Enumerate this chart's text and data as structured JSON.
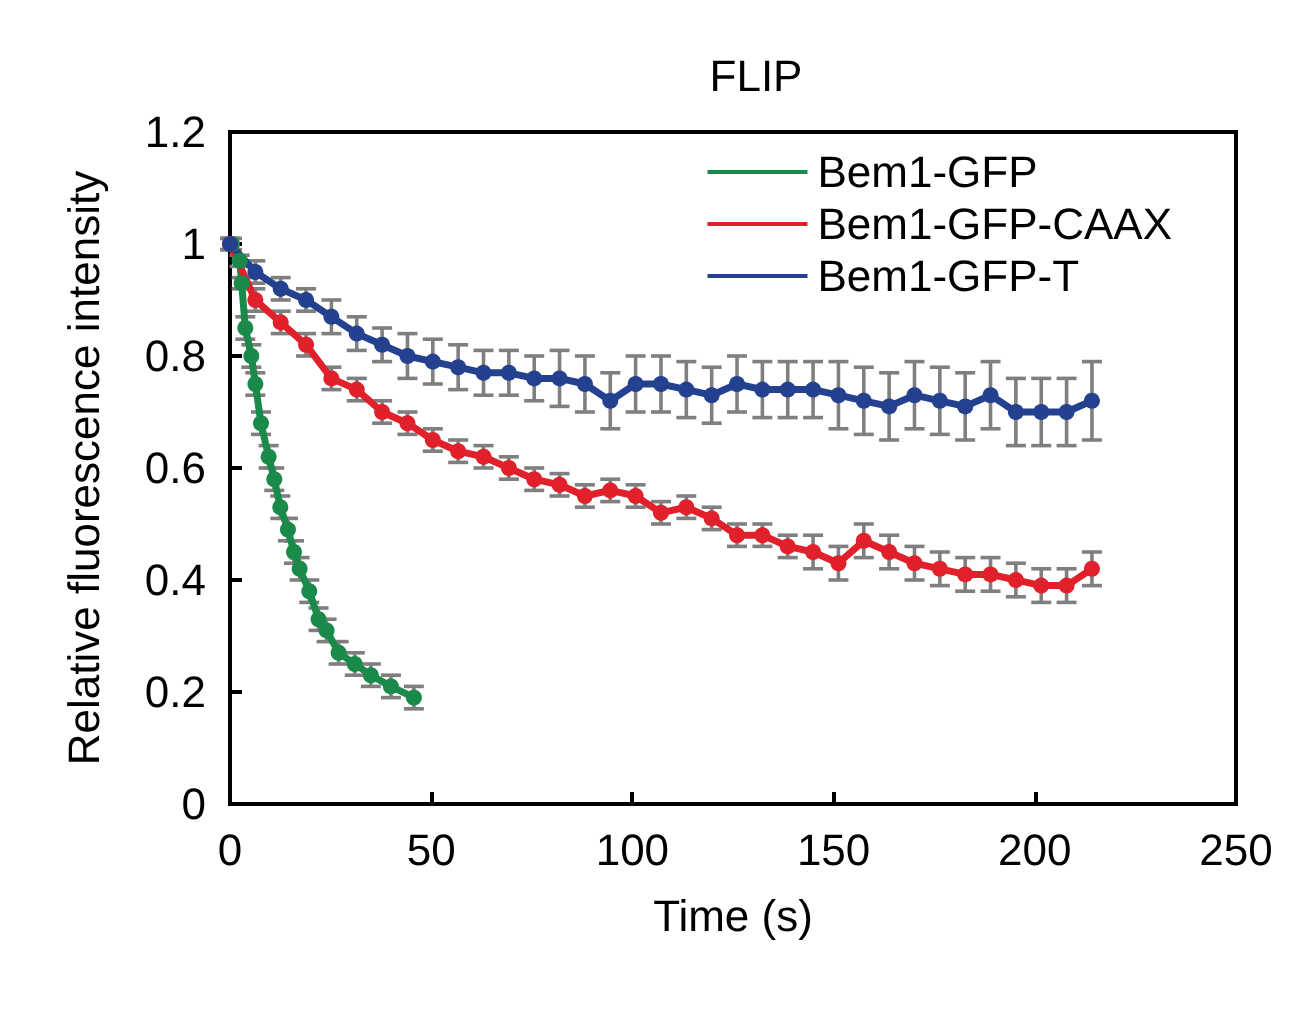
{
  "chart_data": {
    "type": "line",
    "title": "FLIP",
    "xlabel": "Time (s)",
    "ylabel": "Relative fluorescence intensity",
    "x": [
      0,
      6.3,
      12.6,
      18.9,
      25.2,
      31.5,
      37.8,
      44.1,
      50.4,
      56.7,
      63,
      69.3,
      75.6,
      81.9,
      88.2,
      94.5,
      100.8,
      107.1,
      113.4,
      119.7,
      126,
      132.3,
      138.6,
      144.9,
      151.2,
      157.5,
      163.8,
      170.1,
      176.4,
      182.7,
      189,
      195.3,
      201.6,
      207.9,
      214.2
    ],
    "series": [
      {
        "name": "Bem1-GFP",
        "color": "#1a8a4a",
        "x": [
          0.5,
          2.4,
          2.9,
          3.8,
          5.3,
          6.3,
          7.7,
          9.6,
          11,
          12.5,
          14.4,
          15.9,
          17.3,
          19.7,
          22,
          24,
          27,
          31,
          35,
          40,
          45.7
        ],
        "values": [
          1.0,
          0.97,
          0.93,
          0.85,
          0.8,
          0.75,
          0.68,
          0.62,
          0.58,
          0.53,
          0.49,
          0.45,
          0.42,
          0.38,
          0.33,
          0.31,
          0.27,
          0.25,
          0.23,
          0.21,
          0.19
        ],
        "errors": [
          0.01,
          0.01,
          0.01,
          0.02,
          0.02,
          0.02,
          0.02,
          0.02,
          0.02,
          0.02,
          0.02,
          0.02,
          0.02,
          0.02,
          0.02,
          0.02,
          0.02,
          0.02,
          0.02,
          0.02,
          0.02
        ]
      },
      {
        "name": "Bem1-GFP-CAAX",
        "color": "#e0202a",
        "values": [
          1.0,
          0.9,
          0.86,
          0.82,
          0.76,
          0.74,
          0.7,
          0.68,
          0.65,
          0.63,
          0.62,
          0.6,
          0.58,
          0.57,
          0.55,
          0.56,
          0.55,
          0.52,
          0.53,
          0.51,
          0.48,
          0.48,
          0.46,
          0.45,
          0.43,
          0.47,
          0.45,
          0.43,
          0.42,
          0.41,
          0.41,
          0.4,
          0.39,
          0.39,
          0.42
        ],
        "errors": [
          0.01,
          0.02,
          0.02,
          0.02,
          0.02,
          0.02,
          0.02,
          0.02,
          0.02,
          0.02,
          0.02,
          0.02,
          0.02,
          0.02,
          0.02,
          0.02,
          0.02,
          0.02,
          0.02,
          0.02,
          0.02,
          0.02,
          0.02,
          0.03,
          0.03,
          0.03,
          0.03,
          0.03,
          0.03,
          0.03,
          0.03,
          0.03,
          0.03,
          0.03,
          0.03
        ]
      },
      {
        "name": "Bem1-GFP-T",
        "color": "#23418f",
        "values": [
          1.0,
          0.95,
          0.92,
          0.9,
          0.87,
          0.84,
          0.82,
          0.8,
          0.79,
          0.78,
          0.77,
          0.77,
          0.76,
          0.76,
          0.75,
          0.72,
          0.75,
          0.75,
          0.74,
          0.73,
          0.75,
          0.74,
          0.74,
          0.74,
          0.73,
          0.72,
          0.71,
          0.73,
          0.72,
          0.71,
          0.73,
          0.7,
          0.7,
          0.7,
          0.72
        ],
        "errors": [
          0.01,
          0.02,
          0.02,
          0.02,
          0.03,
          0.03,
          0.03,
          0.04,
          0.04,
          0.04,
          0.04,
          0.04,
          0.04,
          0.05,
          0.05,
          0.05,
          0.05,
          0.05,
          0.05,
          0.05,
          0.05,
          0.05,
          0.05,
          0.05,
          0.06,
          0.06,
          0.06,
          0.06,
          0.06,
          0.06,
          0.06,
          0.06,
          0.06,
          0.06,
          0.07
        ]
      }
    ],
    "xlim": [
      0,
      250
    ],
    "xticks": [
      0,
      50,
      100,
      150,
      200,
      250
    ],
    "ylim": [
      0,
      1.2
    ],
    "yticks": [
      0,
      0.2,
      0.4,
      0.6,
      0.8,
      1,
      1.2
    ],
    "legend": "top right",
    "marker": "circle",
    "line_style": "solid",
    "grid": false
  }
}
